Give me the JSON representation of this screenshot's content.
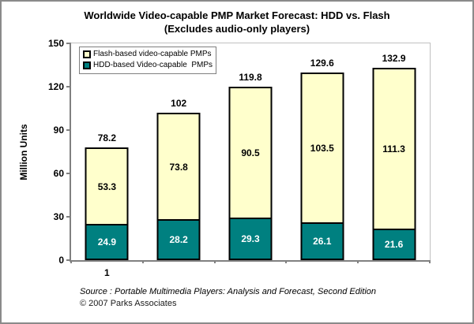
{
  "title": {
    "line1": "Worldwide Video-capable PMP Market Forecast: HDD vs. Flash",
    "line2": "(Excludes audio-only players)"
  },
  "chart_data": {
    "type": "bar",
    "stacked": true,
    "title": "Worldwide Video-capable PMP Market Forecast: HDD vs. Flash (Excludes audio-only players)",
    "ylabel": "Million Units",
    "ylim": [
      0,
      150
    ],
    "yticks": [
      0,
      30,
      60,
      90,
      120,
      150
    ],
    "categories": [
      "1",
      "",
      "",
      "",
      ""
    ],
    "series": [
      {
        "id": "hdd",
        "name": "HDD-based Video-capable  PMPs",
        "color": "#008080",
        "text_color": "#ffffff",
        "values": [
          24.9,
          28.2,
          29.3,
          26.1,
          21.6
        ],
        "labels": [
          "24.9",
          "28.2",
          "29.3",
          "26.1",
          "21.6"
        ]
      },
      {
        "id": "flash",
        "name": "Flash-based video-capable PMPs",
        "color": "#ffffcc",
        "text_color": "#000000",
        "values": [
          53.3,
          73.8,
          90.5,
          103.5,
          111.3
        ],
        "labels": [
          "53.3",
          "73.8",
          "90.5",
          "103.5",
          "111.3"
        ]
      }
    ],
    "totals": [
      "78.2",
      "102",
      "119.8",
      "129.6",
      "132.9"
    ],
    "grid": false,
    "legend_position": "top-left-inside",
    "legend_items": [
      {
        "id": "flash",
        "label": "Flash-based video-capable PMPs",
        "color": "#ffffcc"
      },
      {
        "id": "hdd",
        "label": "HDD-based Video-capable  PMPs",
        "color": "#008080"
      }
    ]
  },
  "footer": {
    "source": "Source : Portable Multimedia Players: Analysis and Forecast, Second Edition",
    "copyright": "© 2007 Parks Associates"
  }
}
